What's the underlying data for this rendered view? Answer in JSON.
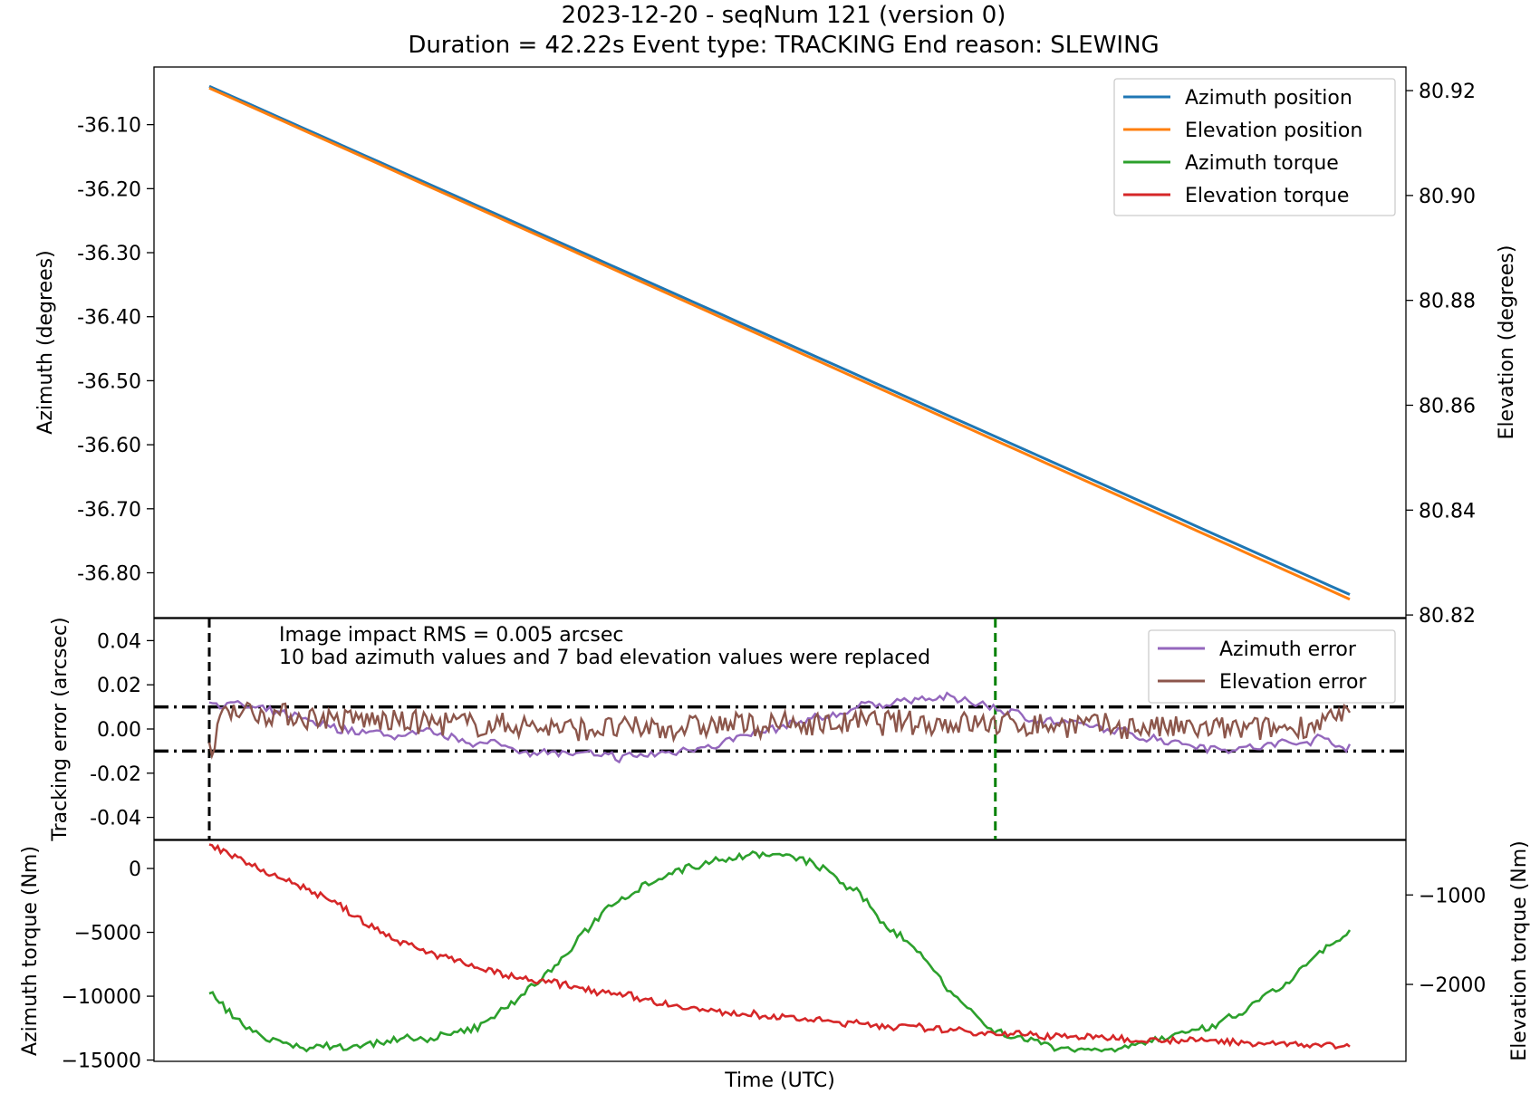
{
  "title_line1": "2023-12-20 - seqNum 121 (version 0)",
  "title_line2": "Duration = 42.22s Event type: TRACKING End reason: SLEWING",
  "chart_data": [
    {
      "type": "line",
      "panel": "position",
      "ylabel_left": "Azimuth (degrees)",
      "ylabel_right": "Elevation (degrees)",
      "ylim_left": [
        -36.87,
        -36.01
      ],
      "ylim_right": [
        80.8195,
        80.9245
      ],
      "yticks_left": [
        "-36.10",
        "-36.20",
        "-36.30",
        "-36.40",
        "-36.50",
        "-36.60",
        "-36.70",
        "-36.80"
      ],
      "yticks_right": [
        "80.82",
        "80.84",
        "80.86",
        "80.88",
        "80.90",
        "80.92"
      ],
      "grid": false,
      "legend_position": "top-right",
      "legend": [
        "Azimuth position",
        "Elevation position",
        "Azimuth torque",
        "Elevation torque"
      ],
      "legend_colors": [
        "#1f77b4",
        "#ff7f0e",
        "#2ca02c",
        "#d62728"
      ],
      "series": [
        {
          "name": "Azimuth position",
          "axis": "left",
          "color": "#1f77b4",
          "t": [
            0,
            42.22
          ],
          "values": [
            -36.04,
            -36.834
          ]
        },
        {
          "name": "Elevation position",
          "axis": "right",
          "color": "#ff7f0e",
          "t": [
            0,
            42.22
          ],
          "values": [
            80.9205,
            80.823
          ]
        }
      ]
    },
    {
      "type": "line",
      "panel": "tracking_error",
      "ylabel": "Tracking error (arcsec)",
      "ylim": [
        -0.05,
        0.05
      ],
      "yticks": [
        "0.04",
        "0.02",
        "0.00",
        "-0.02",
        "-0.04"
      ],
      "threshold_lines": [
        0.01,
        -0.01
      ],
      "vertical_lines": [
        {
          "t": 0,
          "color": "#000000"
        },
        {
          "t": 29.1,
          "color": "#008000"
        }
      ],
      "annotation_line1": "Image impact RMS = 0.005 arcsec",
      "annotation_line2": "10 bad azimuth values and 7 bad elevation values were replaced",
      "legend_position": "top-right",
      "legend": [
        "Azimuth error",
        "Elevation error"
      ],
      "legend_colors": [
        "#9467bd",
        "#8c564b"
      ],
      "series": [
        {
          "name": "Azimuth error",
          "color": "#9467bd",
          "t": [
            0,
            1,
            2,
            3,
            4,
            5,
            6,
            7,
            8,
            9,
            10,
            11,
            12,
            13,
            14,
            15,
            16,
            17,
            18,
            19,
            20,
            21,
            22,
            23,
            24,
            25,
            26,
            27,
            28,
            29,
            30,
            31,
            32,
            33,
            34,
            35,
            36,
            37,
            38,
            39,
            40,
            41,
            42.22
          ],
          "values": [
            0.012,
            0.011,
            0.008,
            0.006,
            0.002,
            0.0,
            -0.002,
            -0.003,
            -0.002,
            -0.004,
            -0.006,
            -0.008,
            -0.01,
            -0.011,
            -0.012,
            -0.013,
            -0.012,
            -0.011,
            -0.008,
            -0.006,
            -0.003,
            0.0,
            0.003,
            0.006,
            0.01,
            0.012,
            0.013,
            0.014,
            0.013,
            0.01,
            0.006,
            0.004,
            0.002,
            0.0,
            -0.002,
            -0.004,
            -0.006,
            -0.008,
            -0.009,
            -0.008,
            -0.006,
            -0.004,
            -0.008
          ]
        },
        {
          "name": "Elevation error",
          "color": "#8c564b",
          "t": [
            0,
            0.15,
            0.3,
            0.6,
            1,
            2,
            3,
            4,
            5,
            6,
            8,
            10,
            12,
            14,
            16,
            18,
            20,
            22,
            24,
            26,
            28,
            30,
            32,
            34,
            36,
            38,
            40,
            42.22
          ],
          "values": [
            -0.01,
            -0.018,
            0.004,
            0.01,
            0.009,
            0.007,
            0.006,
            0.005,
            0.004,
            0.004,
            0.003,
            0.002,
            0.001,
            0.0,
            0.0,
            0.001,
            0.002,
            0.002,
            0.003,
            0.003,
            0.003,
            0.002,
            0.002,
            0.001,
            0.0,
            0.0,
            0.0,
            0.006
          ]
        }
      ]
    },
    {
      "type": "line",
      "panel": "torque",
      "xlabel": "Time (UTC)",
      "ylabel_left": "Azimuth torque (Nm)",
      "ylabel_right": "Elevation torque (Nm)",
      "ylim_left": [
        -15100,
        2200
      ],
      "ylim_right": [
        -2860,
        -390
      ],
      "yticks_left": [
        "0",
        "−5000",
        "−10000",
        "−15000"
      ],
      "yticks_right": [
        "−1000",
        "−2000"
      ],
      "series": [
        {
          "name": "Azimuth torque",
          "axis": "left",
          "color": "#2ca02c",
          "t": [
            0,
            1,
            2,
            3,
            4,
            5,
            6,
            7,
            8,
            9,
            10,
            11,
            12,
            13,
            14,
            15,
            16,
            17,
            18,
            19,
            20,
            21,
            22,
            23,
            24,
            25,
            26,
            27,
            28,
            29,
            30,
            31,
            32,
            33,
            34,
            35,
            36,
            37,
            38,
            39,
            40,
            41,
            42.22
          ],
          "values": [
            -9800,
            -11800,
            -13200,
            -13900,
            -14000,
            -13900,
            -13700,
            -13500,
            -13400,
            -13100,
            -12300,
            -10800,
            -9200,
            -7200,
            -4800,
            -2700,
            -1300,
            -400,
            200,
            800,
            1100,
            1100,
            600,
            -300,
            -2000,
            -4300,
            -5900,
            -8400,
            -10800,
            -12700,
            -13200,
            -13800,
            -14100,
            -14200,
            -13900,
            -13400,
            -13100,
            -12500,
            -11600,
            -10200,
            -8800,
            -6900,
            -5000
          ]
        },
        {
          "name": "Elevation torque",
          "axis": "right",
          "color": "#d62728",
          "t": [
            0,
            0.5,
            1,
            2,
            3,
            4,
            5,
            6,
            7,
            8,
            9,
            10,
            11,
            12,
            13,
            14,
            15,
            16,
            17,
            18,
            19,
            20,
            21,
            22,
            23,
            24,
            25,
            26,
            27,
            28,
            29,
            30,
            31,
            32,
            33,
            34,
            35,
            36,
            37,
            38,
            39,
            40,
            41,
            42.22
          ],
          "values": [
            -450,
            -520,
            -580,
            -720,
            -850,
            -980,
            -1150,
            -1350,
            -1500,
            -1620,
            -1720,
            -1820,
            -1900,
            -1960,
            -2000,
            -2050,
            -2100,
            -2160,
            -2220,
            -2280,
            -2310,
            -2340,
            -2360,
            -2380,
            -2410,
            -2440,
            -2460,
            -2480,
            -2500,
            -2520,
            -2540,
            -2560,
            -2575,
            -2585,
            -2595,
            -2605,
            -2615,
            -2625,
            -2635,
            -2645,
            -2655,
            -2665,
            -2675,
            -2690
          ]
        }
      ]
    }
  ]
}
